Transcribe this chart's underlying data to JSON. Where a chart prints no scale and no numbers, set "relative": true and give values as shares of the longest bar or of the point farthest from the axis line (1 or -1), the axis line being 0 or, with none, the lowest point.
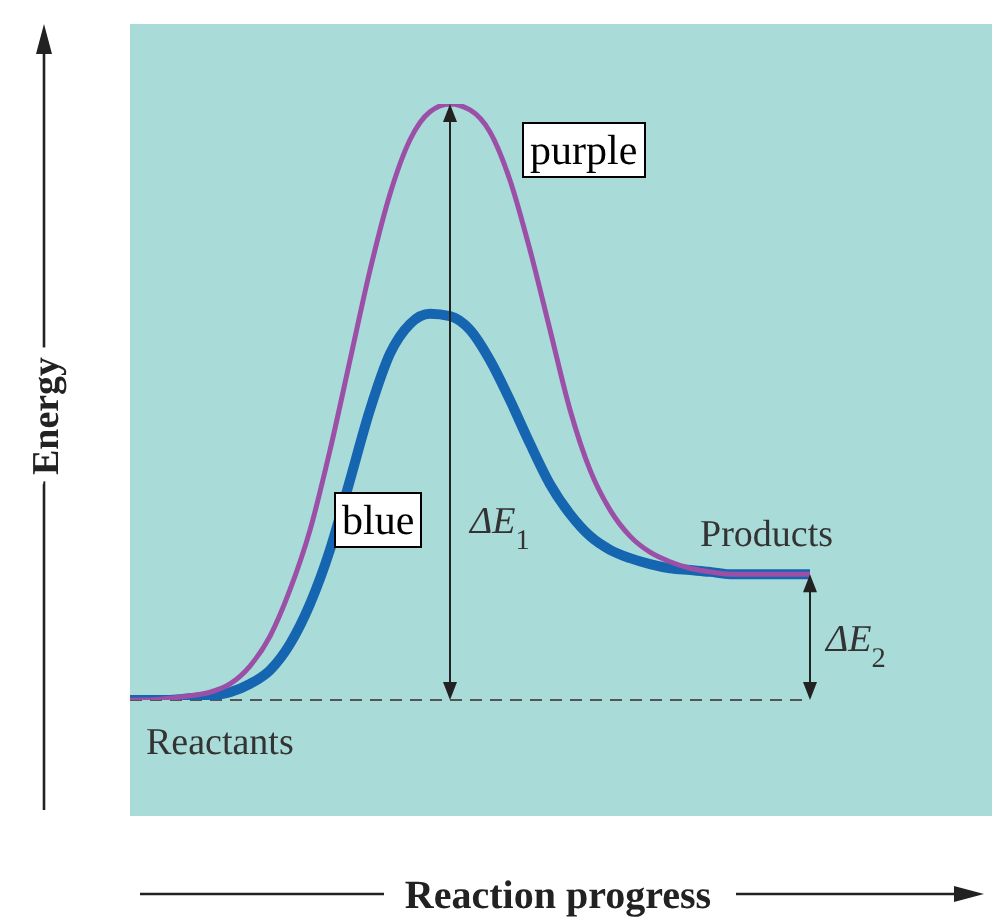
{
  "chart_data": {
    "type": "line",
    "relative": true,
    "xlabel": "Reaction progress",
    "ylabel": "Energy",
    "categories": [
      null,
      null,
      null,
      null,
      null,
      null,
      null,
      null,
      null,
      null,
      null,
      null,
      null,
      null,
      null,
      null,
      null,
      null,
      null,
      null,
      null,
      null,
      null,
      null,
      null,
      null,
      null,
      null,
      null,
      null,
      null,
      null,
      null,
      null,
      null
    ],
    "series": [
      {
        "name": "purple",
        "color": "#9b4fa6",
        "values": [
          0,
          0,
          0.003,
          0.007,
          0.013,
          0.027,
          0.057,
          0.107,
          0.185,
          0.285,
          0.419,
          0.57,
          0.721,
          0.849,
          0.94,
          0.987,
          1,
          0.99,
          0.953,
          0.872,
          0.755,
          0.621,
          0.487,
          0.386,
          0.319,
          0.275,
          0.248,
          0.232,
          0.221,
          0.215,
          0.211,
          0.211,
          0.211,
          0.211,
          0.211
        ]
      },
      {
        "name": "blue",
        "color": "#1565b0",
        "values": [
          0,
          0,
          0,
          0.003,
          0.007,
          0.013,
          0.027,
          0.05,
          0.094,
          0.161,
          0.252,
          0.369,
          0.487,
          0.581,
          0.631,
          0.648,
          0.644,
          0.621,
          0.57,
          0.503,
          0.43,
          0.362,
          0.312,
          0.275,
          0.252,
          0.238,
          0.228,
          0.221,
          0.218,
          0.215,
          0.211,
          0.211,
          0.211,
          0.211,
          0.211
        ]
      }
    ],
    "ref_lines": [
      {
        "axis": "y",
        "value": 0,
        "line_style": "dashed",
        "color": "#555555"
      }
    ],
    "annotations": [
      "ΔE$_{1}$",
      "ΔE$_{2}$",
      "Reactants",
      "Products"
    ],
    "marker": "none",
    "line_style": "solid"
  }
}
